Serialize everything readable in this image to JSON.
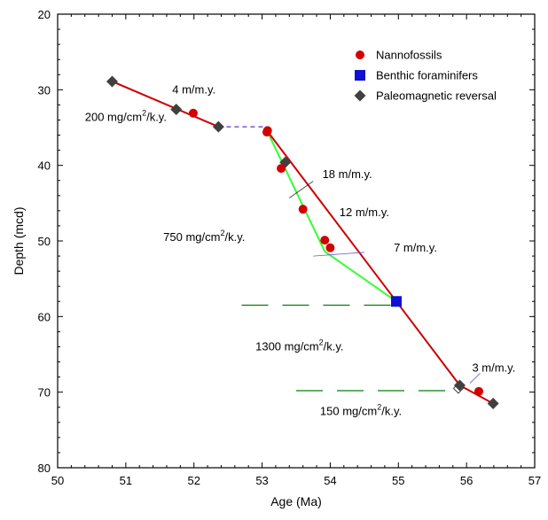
{
  "chart_data": {
    "type": "scatter",
    "xlabel": "Age (Ma)",
    "ylabel": "Depth (mcd)",
    "xlim": [
      50,
      57
    ],
    "ylim": [
      20,
      80
    ],
    "y_inverted": true,
    "xticks": [
      50,
      51,
      52,
      53,
      54,
      55,
      56,
      57
    ],
    "yticks": [
      20,
      30,
      40,
      50,
      60,
      70,
      80
    ],
    "grid": false,
    "legend_position": "top-right",
    "legend": [
      {
        "label": "Nannofossils",
        "marker": "circle",
        "color": "#d40000"
      },
      {
        "label": "Benthic foraminifers",
        "marker": "square",
        "color": "#1010d0"
      },
      {
        "label": "Paleomagnetic reversal",
        "marker": "diamond",
        "color": "#404040"
      }
    ],
    "series": [
      {
        "name": "Nannofossils",
        "marker": "circle",
        "color": "#d40000",
        "points": [
          [
            51.99,
            33.1
          ],
          [
            53.07,
            35.6
          ],
          [
            53.08,
            35.4
          ],
          [
            53.28,
            40.4
          ],
          [
            53.6,
            45.8
          ],
          [
            53.92,
            49.9
          ],
          [
            54.0,
            50.9
          ],
          [
            56.18,
            69.9
          ]
        ]
      },
      {
        "name": "Benthic foraminifers",
        "marker": "square",
        "color": "#1010d0",
        "points": [
          [
            54.97,
            58.0
          ]
        ]
      },
      {
        "name": "Paleomagnetic reversal",
        "marker": "diamond",
        "color": "#404040",
        "points": [
          [
            50.8,
            28.9
          ],
          [
            51.74,
            32.6
          ],
          [
            52.36,
            34.9
          ],
          [
            53.34,
            39.6
          ],
          [
            55.9,
            69.1
          ],
          [
            56.39,
            71.5
          ]
        ]
      },
      {
        "name": "",
        "marker": "open-diamond",
        "color": "#404040",
        "points": [
          [
            55.88,
            69.5
          ]
        ]
      }
    ],
    "lines": [
      {
        "style": "solid",
        "color": "#cc0000",
        "points": [
          [
            50.8,
            28.9
          ],
          [
            52.36,
            34.9
          ]
        ]
      },
      {
        "style": "dashed",
        "color": "#5a2dd6",
        "points": [
          [
            52.36,
            34.9
          ],
          [
            53.07,
            34.9
          ]
        ]
      },
      {
        "style": "solid",
        "color": "#33ff33",
        "points": [
          [
            53.07,
            35.4
          ],
          [
            53.92,
            51.4
          ],
          [
            54.97,
            58.0
          ]
        ]
      },
      {
        "style": "solid",
        "color": "#cc0000",
        "points": [
          [
            53.07,
            35.4
          ],
          [
            54.97,
            58.0
          ],
          [
            55.9,
            69.1
          ],
          [
            56.39,
            71.5
          ]
        ]
      },
      {
        "style": "dashed",
        "color": "#008000",
        "points": [
          [
            52.7,
            58.5
          ],
          [
            55.0,
            58.5
          ]
        ]
      },
      {
        "style": "dashed",
        "color": "#008000",
        "points": [
          [
            53.5,
            69.8
          ],
          [
            55.9,
            69.8
          ]
        ]
      },
      {
        "style": "thin",
        "color": "#6a5acd",
        "points": [
          [
            53.75,
            52.0
          ],
          [
            54.5,
            51.5
          ]
        ]
      },
      {
        "style": "thin",
        "color": "#6a5acd",
        "points": [
          [
            56.05,
            68.8
          ],
          [
            56.2,
            67.5
          ]
        ]
      },
      {
        "style": "thin",
        "color": "#222222",
        "points": [
          [
            53.4,
            44.3
          ],
          [
            53.75,
            42.1
          ]
        ]
      }
    ],
    "annotations": [
      {
        "text": "4 m/m.y.",
        "x": 52.0,
        "y": 30.5
      },
      {
        "text": "200 mg/cm²/k.y.",
        "x": 51.0,
        "y": 34.1
      },
      {
        "text": "18 m/m.y.",
        "x": 54.25,
        "y": 41.7
      },
      {
        "text": "12 m/m.y.",
        "x": 54.5,
        "y": 46.7
      },
      {
        "text": "750 mg/cm²/k.y.",
        "x": 52.15,
        "y": 50.0
      },
      {
        "text": "7 m/m.y.",
        "x": 55.25,
        "y": 51.4
      },
      {
        "text": "1300 mg/cm²/k.y.",
        "x": 53.55,
        "y": 64.5
      },
      {
        "text": "3 m/m.y.",
        "x": 56.4,
        "y": 67.3
      },
      {
        "text": "150 mg/cm²/k.y.",
        "x": 54.45,
        "y": 73.0
      }
    ]
  }
}
